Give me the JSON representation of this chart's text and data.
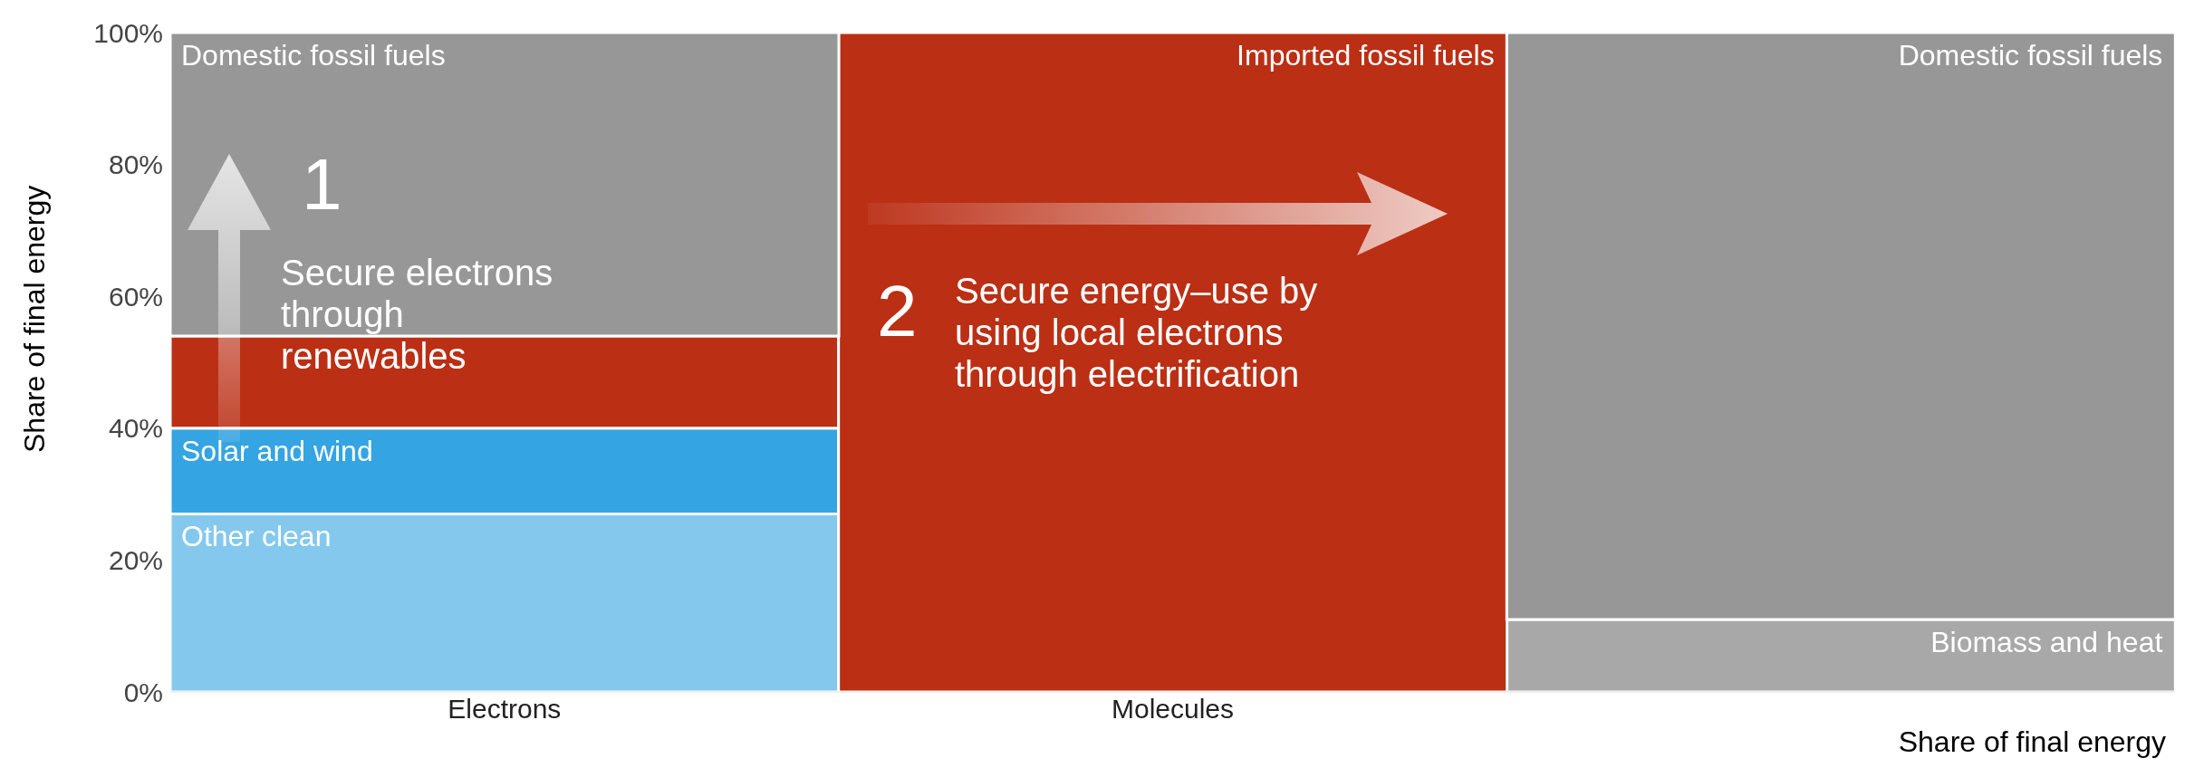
{
  "chart_data": {
    "type": "bar",
    "stacked": true,
    "categories": [
      "Electrons",
      "Molecules",
      null
    ],
    "series": [
      {
        "name": "Other clean",
        "color": "#85c8ee",
        "values": [
          27,
          null,
          null
        ]
      },
      {
        "name": "Solar and wind",
        "color": "#35a4e2",
        "values": [
          13,
          null,
          null
        ]
      },
      {
        "name": "Biomass and heat",
        "color": "#a8a8a8",
        "values": [
          null,
          null,
          11
        ]
      },
      {
        "color": "#bb2f15",
        "values": [
          14,
          null,
          null
        ]
      },
      {
        "name": "Imported fossil fuels",
        "color": "#bb2f15",
        "values": [
          null,
          100,
          null
        ]
      },
      {
        "name": "Domestic fossil fuels",
        "color": "#979797",
        "values": [
          46,
          null,
          89
        ]
      }
    ],
    "ylim": [
      0,
      100
    ],
    "yticks": [
      {
        "value": 0,
        "label": "0%"
      },
      {
        "value": 20,
        "label": "20%"
      },
      {
        "value": 40,
        "label": "40%"
      },
      {
        "value": 60,
        "label": "60%"
      },
      {
        "value": 80,
        "label": "80%"
      },
      {
        "value": 100,
        "label": "100%"
      }
    ],
    "ylabel": "Share of final energy",
    "xlabel": "Share of final energy",
    "grid": false,
    "legend": false,
    "annotations": [
      "1",
      "Secure electrons through renewables",
      "2",
      "Secure energy–use by using local electrons through electrification"
    ]
  }
}
